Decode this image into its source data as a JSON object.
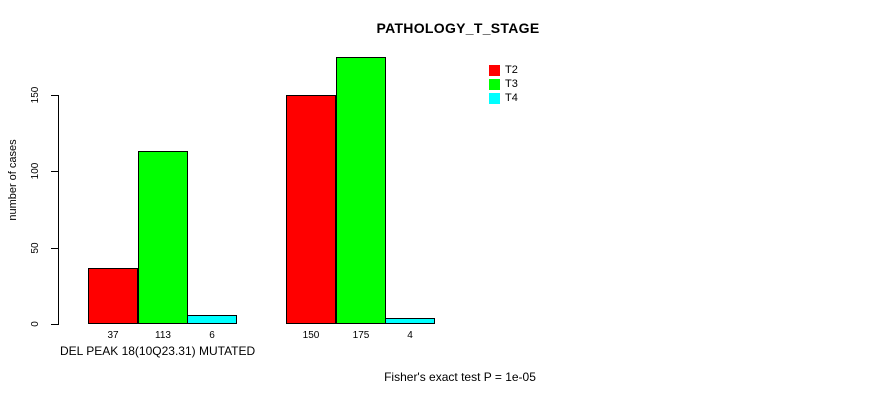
{
  "title": "PATHOLOGY_T_STAGE",
  "y_axis": {
    "label": "number of cases"
  },
  "group_label": "DEL PEAK 18(10Q23.31) MUTATED",
  "footer": "Fisher's exact test P = 1e-05",
  "legend": {
    "items": [
      {
        "label": "T2",
        "color": "#ff0000"
      },
      {
        "label": "T3",
        "color": "#00ff00"
      },
      {
        "label": "T4",
        "color": "#00ffff"
      }
    ]
  },
  "chart_data": {
    "type": "bar",
    "title": "PATHOLOGY_T_STAGE",
    "xlabel": "",
    "ylabel": "number of cases",
    "categories": [
      "DEL PEAK 18(10Q23.31) MUTATED",
      ""
    ],
    "series": [
      {
        "name": "T2",
        "color": "#ff0000",
        "values": [
          37,
          150
        ]
      },
      {
        "name": "T3",
        "color": "#00ff00",
        "values": [
          113,
          175
        ]
      },
      {
        "name": "T4",
        "color": "#00ffff",
        "values": [
          6,
          4
        ]
      }
    ],
    "yticks": [
      0,
      50,
      100,
      150
    ],
    "ylim": [
      0,
      175
    ],
    "grid": false,
    "legend_position": "top-right",
    "bar_value_labels": true,
    "annotation": "Fisher's exact test P = 1e-05"
  }
}
